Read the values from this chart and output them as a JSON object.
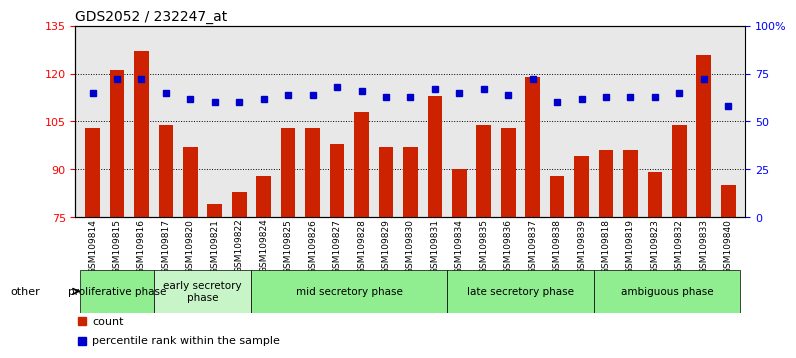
{
  "title": "GDS2052 / 232247_at",
  "samples": [
    "GSM109814",
    "GSM109815",
    "GSM109816",
    "GSM109817",
    "GSM109820",
    "GSM109821",
    "GSM109822",
    "GSM109824",
    "GSM109825",
    "GSM109826",
    "GSM109827",
    "GSM109828",
    "GSM109829",
    "GSM109830",
    "GSM109831",
    "GSM109834",
    "GSM109835",
    "GSM109836",
    "GSM109837",
    "GSM109838",
    "GSM109839",
    "GSM109818",
    "GSM109819",
    "GSM109823",
    "GSM109832",
    "GSM109833",
    "GSM109840"
  ],
  "counts": [
    103,
    121,
    127,
    104,
    97,
    79,
    83,
    88,
    103,
    103,
    98,
    108,
    97,
    97,
    113,
    90,
    104,
    103,
    119,
    88,
    94,
    96,
    96,
    89,
    104,
    126,
    85
  ],
  "percentiles": [
    65,
    72,
    72,
    65,
    62,
    60,
    60,
    62,
    64,
    64,
    68,
    66,
    63,
    63,
    67,
    65,
    67,
    64,
    72,
    60,
    62,
    63,
    63,
    63,
    65,
    72,
    58
  ],
  "ylim": [
    75,
    135
  ],
  "yticks": [
    75,
    90,
    105,
    120,
    135
  ],
  "y2ticks": [
    0,
    25,
    50,
    75,
    100
  ],
  "y2ticklabels": [
    "0",
    "25",
    "50",
    "75",
    "100%"
  ],
  "bar_color": "#cc2200",
  "dot_color": "#0000cc",
  "background_plot": "#e8e8e8",
  "phases": [
    {
      "label": "proliferative phase",
      "start": 0,
      "end": 3,
      "color": "#90ee90"
    },
    {
      "label": "early secretory\nphase",
      "start": 3,
      "end": 7,
      "color": "#c8f5c8"
    },
    {
      "label": "mid secretory phase",
      "start": 7,
      "end": 15,
      "color": "#90ee90"
    },
    {
      "label": "late secretory phase",
      "start": 15,
      "end": 21,
      "color": "#90ee90"
    },
    {
      "label": "ambiguous phase",
      "start": 21,
      "end": 27,
      "color": "#90ee90"
    }
  ],
  "other_label": "other"
}
